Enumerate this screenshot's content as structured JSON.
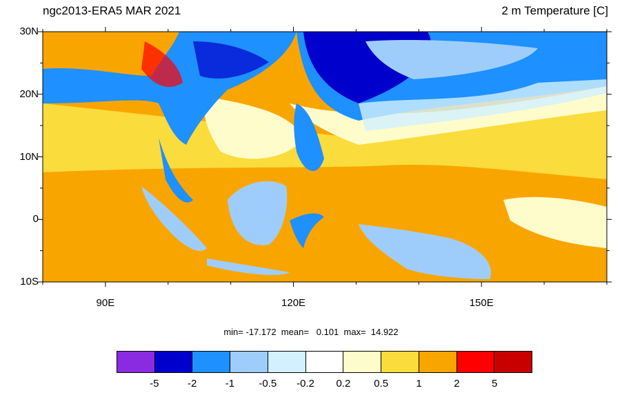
{
  "header": {
    "left_title": "ngc2013-ERA5 MAR 2021",
    "right_title": "2 m Temperature [C]"
  },
  "map": {
    "lon_range": [
      80,
      170
    ],
    "lat_range": [
      -10,
      30
    ],
    "lat_ticks": [
      {
        "value": 30,
        "label": "30N"
      },
      {
        "value": 20,
        "label": "20N"
      },
      {
        "value": 10,
        "label": "10N"
      },
      {
        "value": 0,
        "label": "0"
      },
      {
        "value": -10,
        "label": "10S"
      }
    ],
    "lon_ticks": [
      {
        "value": 90,
        "label": "90E"
      },
      {
        "value": 120,
        "label": "120E"
      },
      {
        "value": 150,
        "label": "150E"
      }
    ]
  },
  "stats": {
    "text": "min= -17.172  mean=   0.101  max=  14.922"
  },
  "colorbar": {
    "colors": [
      "#8a2be2",
      "#0000cd",
      "#1e90ff",
      "#9fcdfb",
      "#d2f0ff",
      "#ffffff",
      "#fffccc",
      "#fadc3c",
      "#f9a500",
      "#ff0000",
      "#c80000"
    ],
    "labels": [
      "-5",
      "-2",
      "-1",
      "-0.5",
      "-0.2",
      "0.2",
      "0.5",
      "1",
      "2",
      "5"
    ]
  }
}
